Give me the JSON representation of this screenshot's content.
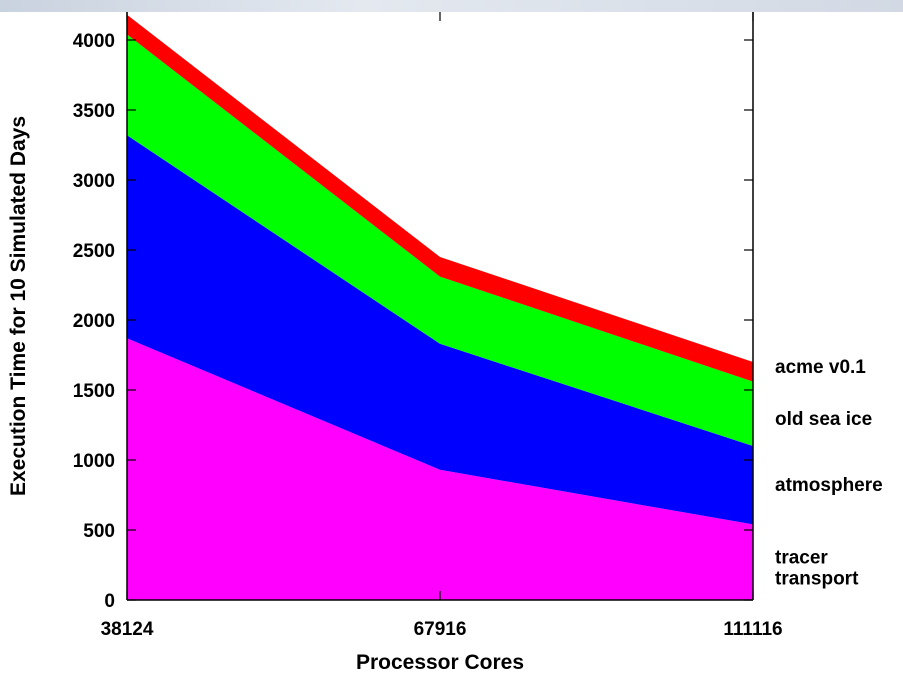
{
  "chart_data": {
    "type": "area",
    "stacked": true,
    "title": "",
    "xlabel": "Processor Cores",
    "ylabel": "Execution Time for 10 Simulated Days",
    "x": [
      "38124",
      "67916",
      "111116"
    ],
    "ylim": [
      0,
      4200
    ],
    "yticks": [
      0,
      500,
      1000,
      1500,
      2000,
      2500,
      3000,
      3500,
      4000
    ],
    "series": [
      {
        "name": "tracer transport",
        "color": "#ff00ff",
        "values": [
          1870,
          930,
          540
        ]
      },
      {
        "name": "atmosphere",
        "color": "#0000ff",
        "values": [
          1450,
          900,
          560
        ]
      },
      {
        "name": "old sea ice",
        "color": "#00ff00",
        "values": [
          720,
          480,
          460
        ]
      },
      {
        "name": "acme v0.1",
        "color": "#ff0000",
        "values": [
          140,
          140,
          140
        ]
      }
    ],
    "legend": {
      "placement": "right",
      "labels": [
        {
          "series": 3,
          "lines": [
            "acme v0.1"
          ]
        },
        {
          "series": 2,
          "lines": [
            "old sea ice"
          ]
        },
        {
          "series": 1,
          "lines": [
            "atmosphere"
          ]
        },
        {
          "series": 0,
          "lines": [
            "tracer",
            "transport"
          ]
        }
      ]
    },
    "grid": false
  }
}
